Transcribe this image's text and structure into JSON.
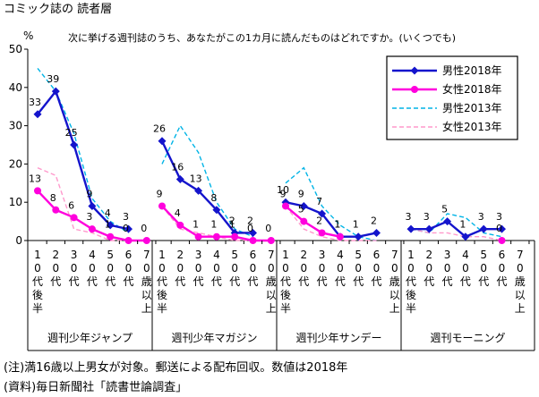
{
  "title": "コミック誌の 読者層",
  "chart_data": {
    "type": "line",
    "question": "次に挙げる週刊誌のうち、あなたがこの1カ月に読んだものはどれですか。(いくつでも)",
    "ylabel": "%",
    "ylim": [
      0,
      50
    ],
    "yticks": [
      0,
      10,
      20,
      30,
      40,
      50
    ],
    "grid": false,
    "legend_position": "top-right",
    "magazines": [
      "週刊少年ジャンプ",
      "週刊少年マガジン",
      "週刊少年サンデー",
      "週刊モーニング"
    ],
    "age_groups": [
      "10代後半",
      "20代",
      "30代",
      "40代",
      "50代",
      "60代",
      "70歳以上"
    ],
    "series": [
      {
        "name": "男性2018年",
        "color": "#1414cc",
        "style": "solid-diamond",
        "values": [
          [
            33,
            39,
            25,
            9,
            4,
            3,
            null
          ],
          [
            26,
            16,
            13,
            8,
            2,
            2,
            null
          ],
          [
            10,
            9,
            7,
            1,
            1,
            2,
            null
          ],
          [
            3,
            3,
            5,
            1,
            3,
            3,
            null
          ]
        ],
        "labels": [
          [
            "33",
            "39",
            "25",
            "9",
            "4",
            "3",
            ""
          ],
          [
            "26",
            "16",
            "13",
            "8",
            "2",
            "2",
            ""
          ],
          [
            "10",
            "9",
            "7",
            "1",
            "1",
            "2",
            ""
          ],
          [
            "3",
            "3",
            "5",
            "1",
            "3",
            "3",
            ""
          ]
        ]
      },
      {
        "name": "女性2018年",
        "color": "#ff00dd",
        "style": "solid-circle",
        "values": [
          [
            13,
            8,
            6,
            3,
            1,
            0,
            0
          ],
          [
            9,
            4,
            1,
            1,
            1,
            0,
            0
          ],
          [
            9,
            5,
            2,
            1,
            null,
            null,
            null
          ],
          [
            null,
            null,
            null,
            null,
            null,
            0,
            null
          ]
        ],
        "labels": [
          [
            "13",
            "8",
            "6",
            "3",
            "1",
            "0",
            "0"
          ],
          [
            "9",
            "4",
            "1",
            "1",
            "1",
            "0",
            "0"
          ],
          [
            "9",
            "5",
            "2",
            "1",
            "",
            "",
            ""
          ],
          [
            "",
            "",
            "",
            "",
            "",
            "0",
            ""
          ]
        ]
      },
      {
        "name": "男性2013年",
        "color": "#00b4e6",
        "style": "dashed",
        "values": [
          [
            45,
            39,
            28,
            11,
            5,
            2,
            null
          ],
          [
            20,
            30,
            23,
            10,
            3,
            1,
            null
          ],
          [
            15,
            19,
            9,
            4,
            1,
            0,
            null
          ],
          [
            3,
            2,
            7,
            6,
            2,
            1,
            null
          ]
        ]
      },
      {
        "name": "女性2013年",
        "color": "#ff99cc",
        "style": "dashed",
        "values": [
          [
            19,
            17,
            3,
            2,
            0,
            0,
            null
          ],
          [
            9,
            3,
            2,
            1,
            0,
            0,
            null
          ],
          [
            9,
            3,
            1,
            0,
            0,
            0,
            null
          ],
          [
            3,
            2,
            2,
            1,
            1,
            0,
            null
          ]
        ]
      }
    ]
  },
  "notes": [
    "(注)満16歳以上男女が対象。郵送による配布回収。数値は2018年",
    "(資料)毎日新聞社「読書世論調査」"
  ]
}
